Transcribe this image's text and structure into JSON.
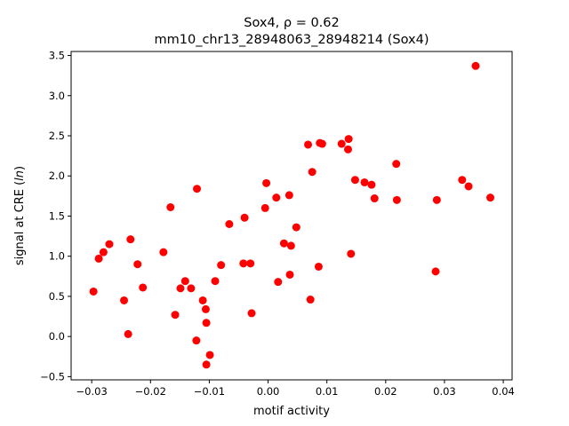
{
  "chart_data": {
    "type": "scatter",
    "title_line1": "Sox4, ρ = 0.62",
    "title_line2": "mm10_chr13_28948063_28948214 (Sox4)",
    "xlabel": "motif activity",
    "ylabel": "signal at CRE (ln)",
    "xlim": [
      -0.0335,
      0.0415
    ],
    "ylim": [
      -0.54,
      3.55
    ],
    "xticks": [
      -0.03,
      -0.02,
      -0.01,
      0.0,
      0.01,
      0.02,
      0.03,
      0.04
    ],
    "xtick_labels": [
      "−0.03",
      "−0.02",
      "−0.01",
      "0.00",
      "0.01",
      "0.02",
      "0.03",
      "0.04"
    ],
    "yticks": [
      -0.5,
      0.0,
      0.5,
      1.0,
      1.5,
      2.0,
      2.5,
      3.0,
      3.5
    ],
    "ytick_labels": [
      "−0.5",
      "0.0",
      "0.5",
      "1.0",
      "1.5",
      "2.0",
      "2.5",
      "3.0",
      "3.5"
    ],
    "grid": false,
    "point_color": "#ff0000",
    "points": [
      [
        -0.0297,
        0.56
      ],
      [
        -0.0288,
        0.97
      ],
      [
        -0.028,
        1.05
      ],
      [
        -0.027,
        1.15
      ],
      [
        -0.0245,
        0.45
      ],
      [
        -0.0238,
        0.03
      ],
      [
        -0.0234,
        1.21
      ],
      [
        -0.0222,
        0.9
      ],
      [
        -0.0213,
        0.61
      ],
      [
        -0.0178,
        1.05
      ],
      [
        -0.0166,
        1.61
      ],
      [
        -0.0158,
        0.27
      ],
      [
        -0.0149,
        0.6
      ],
      [
        -0.0141,
        0.69
      ],
      [
        -0.0131,
        0.6
      ],
      [
        -0.0122,
        -0.05
      ],
      [
        -0.0121,
        1.84
      ],
      [
        -0.0111,
        0.45
      ],
      [
        -0.0106,
        0.34
      ],
      [
        -0.0105,
        0.17
      ],
      [
        -0.0105,
        -0.35
      ],
      [
        -0.0099,
        -0.23
      ],
      [
        -0.009,
        0.69
      ],
      [
        -0.008,
        0.89
      ],
      [
        -0.0066,
        1.4
      ],
      [
        -0.0042,
        0.91
      ],
      [
        -0.004,
        1.48
      ],
      [
        -0.003,
        0.91
      ],
      [
        -0.0028,
        0.29
      ],
      [
        -0.0005,
        1.6
      ],
      [
        -0.0003,
        1.91
      ],
      [
        0.0014,
        1.73
      ],
      [
        0.0017,
        0.68
      ],
      [
        0.0027,
        1.16
      ],
      [
        0.0036,
        1.76
      ],
      [
        0.0037,
        0.77
      ],
      [
        0.0039,
        1.13
      ],
      [
        0.0048,
        1.36
      ],
      [
        0.0068,
        2.39
      ],
      [
        0.0072,
        0.46
      ],
      [
        0.0075,
        2.05
      ],
      [
        0.0086,
        0.87
      ],
      [
        0.0088,
        2.41
      ],
      [
        0.0092,
        2.4
      ],
      [
        0.0125,
        2.4
      ],
      [
        0.0136,
        2.33
      ],
      [
        0.0137,
        2.46
      ],
      [
        0.0141,
        1.03
      ],
      [
        0.0148,
        1.95
      ],
      [
        0.0164,
        1.92
      ],
      [
        0.0176,
        1.89
      ],
      [
        0.0181,
        1.72
      ],
      [
        0.0218,
        2.15
      ],
      [
        0.0219,
        1.7
      ],
      [
        0.0285,
        0.81
      ],
      [
        0.0287,
        1.7
      ],
      [
        0.033,
        1.95
      ],
      [
        0.0341,
        1.87
      ],
      [
        0.0353,
        3.37
      ],
      [
        0.0378,
        1.73
      ]
    ]
  }
}
